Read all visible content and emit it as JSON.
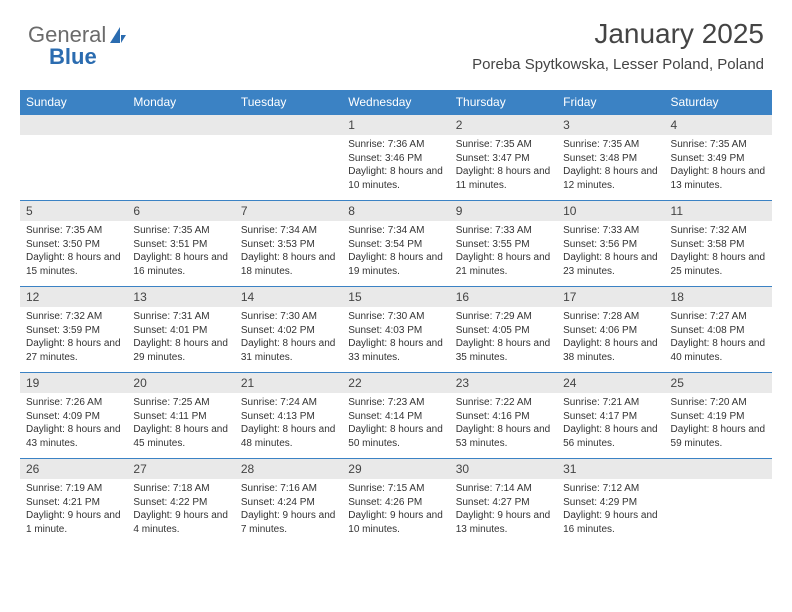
{
  "brand": {
    "part1": "General",
    "part2": "Blue"
  },
  "header": {
    "title": "January 2025",
    "location": "Poreba Spytkowska, Lesser Poland, Poland"
  },
  "colors": {
    "header_bg": "#3b82c4",
    "header_text": "#ffffff",
    "daynum_bg": "#e9e9e9",
    "border": "#3b82c4",
    "brand_gray": "#6b6b6b",
    "brand_blue": "#2b6cb0"
  },
  "dayNames": [
    "Sunday",
    "Monday",
    "Tuesday",
    "Wednesday",
    "Thursday",
    "Friday",
    "Saturday"
  ],
  "weeks": [
    [
      {
        "n": "",
        "sr": "",
        "ss": "",
        "dl": ""
      },
      {
        "n": "",
        "sr": "",
        "ss": "",
        "dl": ""
      },
      {
        "n": "",
        "sr": "",
        "ss": "",
        "dl": ""
      },
      {
        "n": "1",
        "sr": "7:36 AM",
        "ss": "3:46 PM",
        "dl": "8 hours and 10 minutes."
      },
      {
        "n": "2",
        "sr": "7:35 AM",
        "ss": "3:47 PM",
        "dl": "8 hours and 11 minutes."
      },
      {
        "n": "3",
        "sr": "7:35 AM",
        "ss": "3:48 PM",
        "dl": "8 hours and 12 minutes."
      },
      {
        "n": "4",
        "sr": "7:35 AM",
        "ss": "3:49 PM",
        "dl": "8 hours and 13 minutes."
      }
    ],
    [
      {
        "n": "5",
        "sr": "7:35 AM",
        "ss": "3:50 PM",
        "dl": "8 hours and 15 minutes."
      },
      {
        "n": "6",
        "sr": "7:35 AM",
        "ss": "3:51 PM",
        "dl": "8 hours and 16 minutes."
      },
      {
        "n": "7",
        "sr": "7:34 AM",
        "ss": "3:53 PM",
        "dl": "8 hours and 18 minutes."
      },
      {
        "n": "8",
        "sr": "7:34 AM",
        "ss": "3:54 PM",
        "dl": "8 hours and 19 minutes."
      },
      {
        "n": "9",
        "sr": "7:33 AM",
        "ss": "3:55 PM",
        "dl": "8 hours and 21 minutes."
      },
      {
        "n": "10",
        "sr": "7:33 AM",
        "ss": "3:56 PM",
        "dl": "8 hours and 23 minutes."
      },
      {
        "n": "11",
        "sr": "7:32 AM",
        "ss": "3:58 PM",
        "dl": "8 hours and 25 minutes."
      }
    ],
    [
      {
        "n": "12",
        "sr": "7:32 AM",
        "ss": "3:59 PM",
        "dl": "8 hours and 27 minutes."
      },
      {
        "n": "13",
        "sr": "7:31 AM",
        "ss": "4:01 PM",
        "dl": "8 hours and 29 minutes."
      },
      {
        "n": "14",
        "sr": "7:30 AM",
        "ss": "4:02 PM",
        "dl": "8 hours and 31 minutes."
      },
      {
        "n": "15",
        "sr": "7:30 AM",
        "ss": "4:03 PM",
        "dl": "8 hours and 33 minutes."
      },
      {
        "n": "16",
        "sr": "7:29 AM",
        "ss": "4:05 PM",
        "dl": "8 hours and 35 minutes."
      },
      {
        "n": "17",
        "sr": "7:28 AM",
        "ss": "4:06 PM",
        "dl": "8 hours and 38 minutes."
      },
      {
        "n": "18",
        "sr": "7:27 AM",
        "ss": "4:08 PM",
        "dl": "8 hours and 40 minutes."
      }
    ],
    [
      {
        "n": "19",
        "sr": "7:26 AM",
        "ss": "4:09 PM",
        "dl": "8 hours and 43 minutes."
      },
      {
        "n": "20",
        "sr": "7:25 AM",
        "ss": "4:11 PM",
        "dl": "8 hours and 45 minutes."
      },
      {
        "n": "21",
        "sr": "7:24 AM",
        "ss": "4:13 PM",
        "dl": "8 hours and 48 minutes."
      },
      {
        "n": "22",
        "sr": "7:23 AM",
        "ss": "4:14 PM",
        "dl": "8 hours and 50 minutes."
      },
      {
        "n": "23",
        "sr": "7:22 AM",
        "ss": "4:16 PM",
        "dl": "8 hours and 53 minutes."
      },
      {
        "n": "24",
        "sr": "7:21 AM",
        "ss": "4:17 PM",
        "dl": "8 hours and 56 minutes."
      },
      {
        "n": "25",
        "sr": "7:20 AM",
        "ss": "4:19 PM",
        "dl": "8 hours and 59 minutes."
      }
    ],
    [
      {
        "n": "26",
        "sr": "7:19 AM",
        "ss": "4:21 PM",
        "dl": "9 hours and 1 minute."
      },
      {
        "n": "27",
        "sr": "7:18 AM",
        "ss": "4:22 PM",
        "dl": "9 hours and 4 minutes."
      },
      {
        "n": "28",
        "sr": "7:16 AM",
        "ss": "4:24 PM",
        "dl": "9 hours and 7 minutes."
      },
      {
        "n": "29",
        "sr": "7:15 AM",
        "ss": "4:26 PM",
        "dl": "9 hours and 10 minutes."
      },
      {
        "n": "30",
        "sr": "7:14 AM",
        "ss": "4:27 PM",
        "dl": "9 hours and 13 minutes."
      },
      {
        "n": "31",
        "sr": "7:12 AM",
        "ss": "4:29 PM",
        "dl": "9 hours and 16 minutes."
      },
      {
        "n": "",
        "sr": "",
        "ss": "",
        "dl": ""
      }
    ]
  ],
  "labels": {
    "sunrise": "Sunrise:",
    "sunset": "Sunset:",
    "daylight": "Daylight:"
  }
}
